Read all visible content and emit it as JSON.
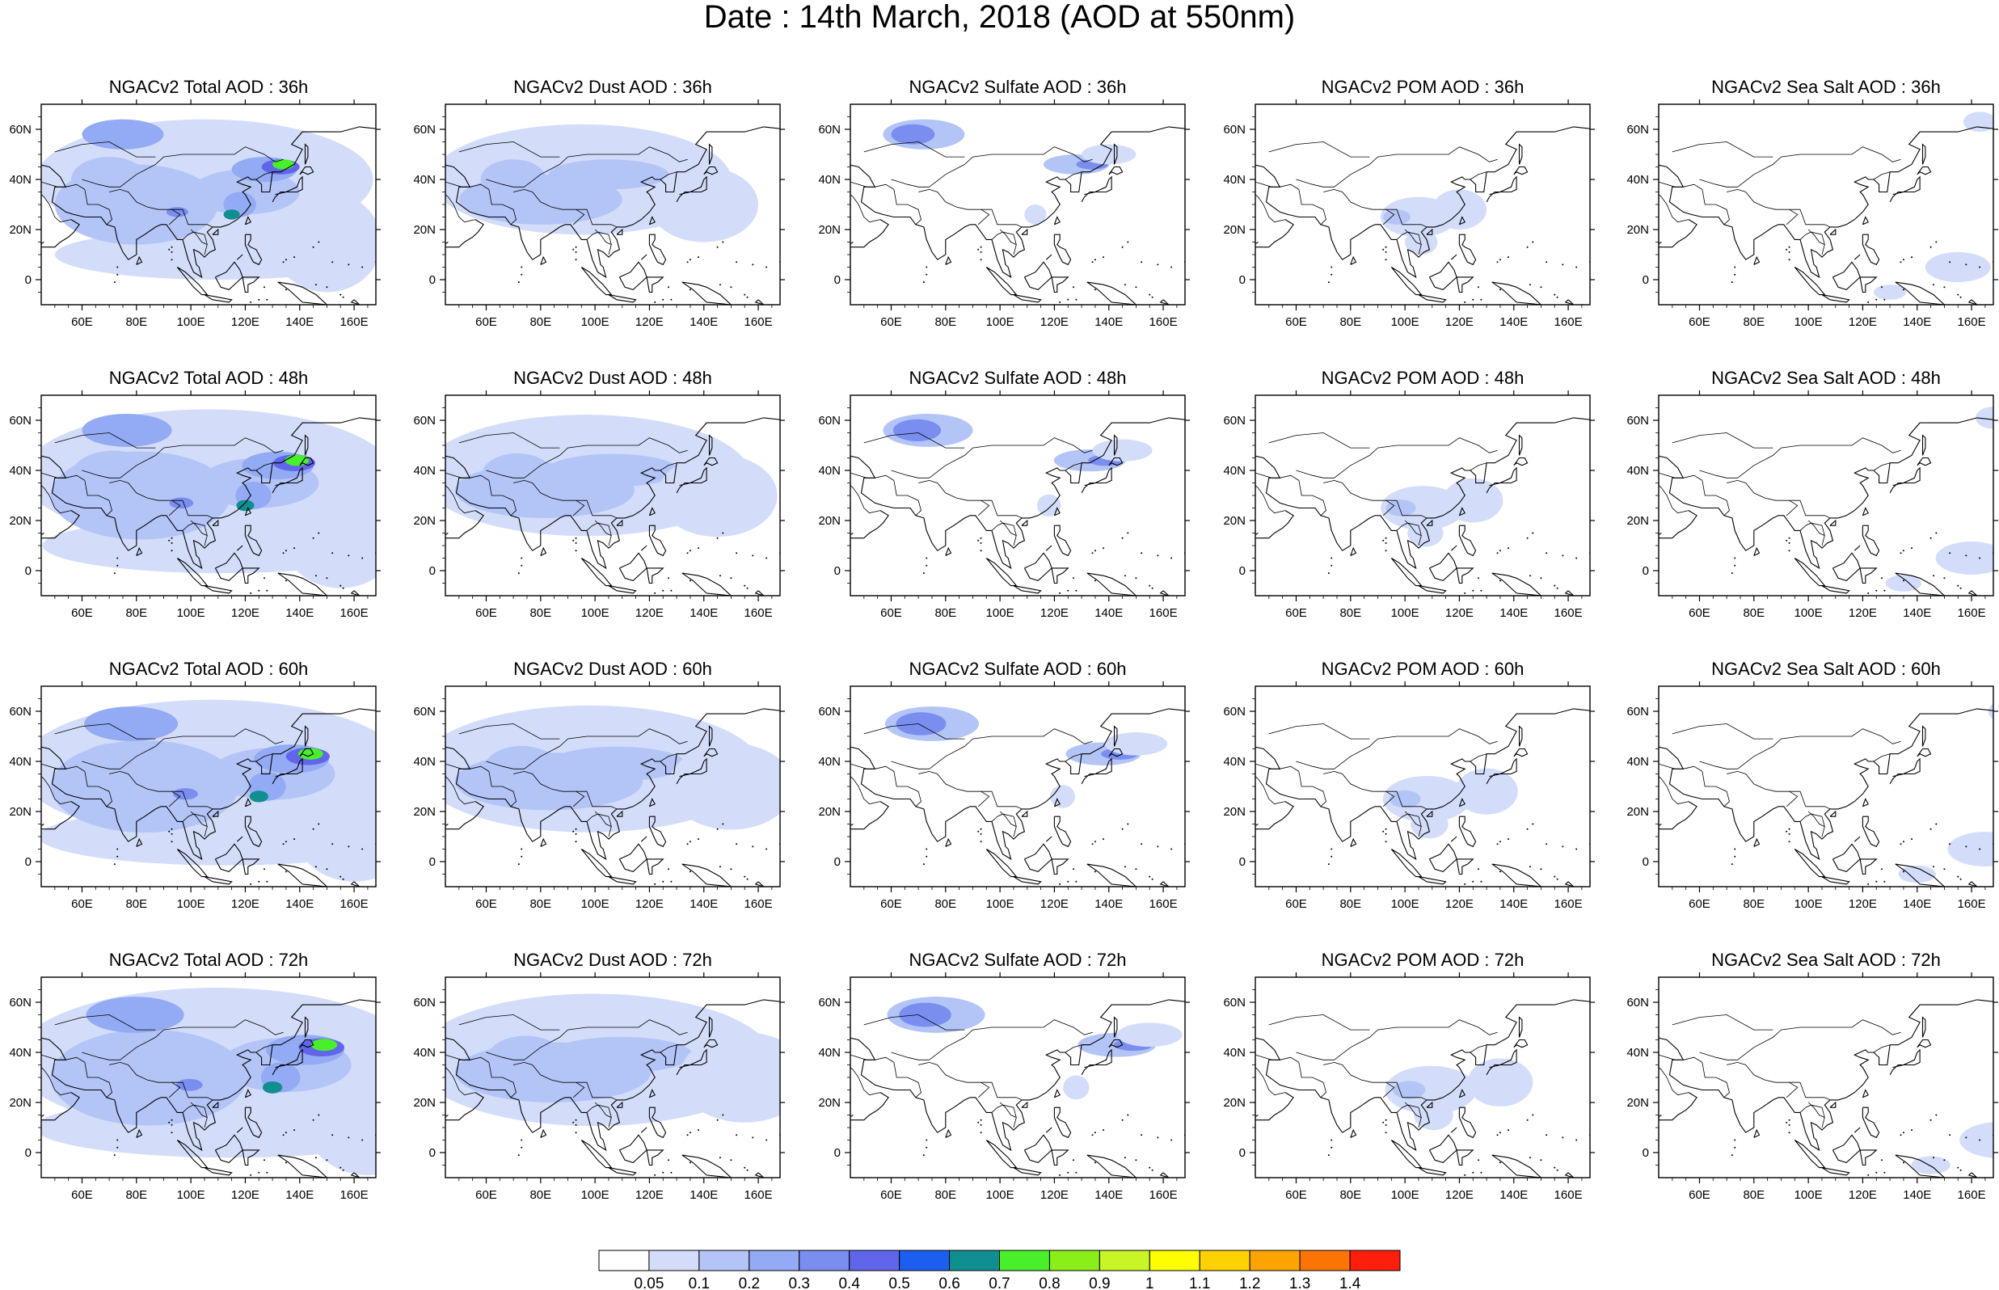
{
  "figure": {
    "title": "Date : 14th March, 2018 (AOD at 550nm)"
  },
  "panels": [
    {
      "title": "NGACv2 Total AOD : 36h",
      "species": "total",
      "forecast_hour": 36
    },
    {
      "title": "NGACv2 Dust AOD : 36h",
      "species": "dust",
      "forecast_hour": 36
    },
    {
      "title": "NGACv2 Sulfate AOD : 36h",
      "species": "sulfate",
      "forecast_hour": 36
    },
    {
      "title": "NGACv2 POM AOD : 36h",
      "species": "pom",
      "forecast_hour": 36
    },
    {
      "title": "NGACv2 Sea Salt AOD : 36h",
      "species": "seasalt",
      "forecast_hour": 36
    },
    {
      "title": "NGACv2 Total AOD : 48h",
      "species": "total",
      "forecast_hour": 48
    },
    {
      "title": "NGACv2 Dust AOD : 48h",
      "species": "dust",
      "forecast_hour": 48
    },
    {
      "title": "NGACv2 Sulfate AOD : 48h",
      "species": "sulfate",
      "forecast_hour": 48
    },
    {
      "title": "NGACv2 POM AOD : 48h",
      "species": "pom",
      "forecast_hour": 48
    },
    {
      "title": "NGACv2 Sea Salt AOD : 48h",
      "species": "seasalt",
      "forecast_hour": 48
    },
    {
      "title": "NGACv2 Total AOD : 60h",
      "species": "total",
      "forecast_hour": 60
    },
    {
      "title": "NGACv2 Dust AOD : 60h",
      "species": "dust",
      "forecast_hour": 60
    },
    {
      "title": "NGACv2 Sulfate AOD : 60h",
      "species": "sulfate",
      "forecast_hour": 60
    },
    {
      "title": "NGACv2 POM AOD : 60h",
      "species": "pom",
      "forecast_hour": 60
    },
    {
      "title": "NGACv2 Sea Salt AOD : 60h",
      "species": "seasalt",
      "forecast_hour": 60
    },
    {
      "title": "NGACv2 Total AOD : 72h",
      "species": "total",
      "forecast_hour": 72
    },
    {
      "title": "NGACv2 Dust AOD : 72h",
      "species": "dust",
      "forecast_hour": 72
    },
    {
      "title": "NGACv2 Sulfate AOD : 72h",
      "species": "sulfate",
      "forecast_hour": 72
    },
    {
      "title": "NGACv2 POM AOD : 72h",
      "species": "pom",
      "forecast_hour": 72
    },
    {
      "title": "NGACv2 Sea Salt  AOD : 72h",
      "species": "seasalt",
      "forecast_hour": 72
    }
  ],
  "axes": {
    "lon_range": [
      45,
      168
    ],
    "lat_range": [
      -10,
      70
    ],
    "lon_ticks": [
      {
        "value": 60,
        "label": "60E"
      },
      {
        "value": 80,
        "label": "80E"
      },
      {
        "value": 100,
        "label": "100E"
      },
      {
        "value": 120,
        "label": "120E"
      },
      {
        "value": 140,
        "label": "140E"
      },
      {
        "value": 160,
        "label": "160E"
      }
    ],
    "lat_ticks": [
      {
        "value": 0,
        "label": "0"
      },
      {
        "value": 20,
        "label": "20N"
      },
      {
        "value": 40,
        "label": "40N"
      },
      {
        "value": 60,
        "label": "60N"
      }
    ]
  },
  "colorbar": {
    "labels": [
      "0.05",
      "0.1",
      "0.2",
      "0.3",
      "0.4",
      "0.5",
      "0.6",
      "0.7",
      "0.8",
      "0.9",
      "1",
      "1.1",
      "1.2",
      "1.3",
      "1.4"
    ],
    "colors": [
      "#ffffff",
      "#d3ddfa",
      "#b3c4f7",
      "#93aaf4",
      "#7a8ef0",
      "#6165ea",
      "#1c5ff0",
      "#0f8f8f",
      "#48ef2a",
      "#8aee18",
      "#c7f526",
      "#fefe00",
      "#fed200",
      "#fda402",
      "#fc7404",
      "#fd1e0b"
    ]
  },
  "map_style": {
    "coast_color": "#000000"
  }
}
